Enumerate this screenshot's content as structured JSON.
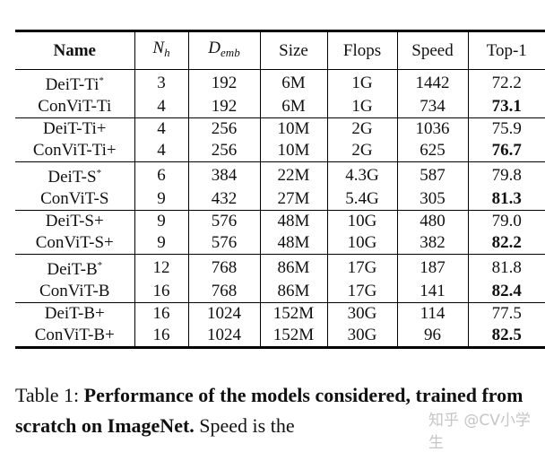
{
  "table": {
    "columns": [
      {
        "label": "Name",
        "math": false
      },
      {
        "label": "N",
        "sub": "h",
        "math": true
      },
      {
        "label": "D",
        "sub": "emb",
        "math": true
      },
      {
        "label": "Size",
        "math": false
      },
      {
        "label": "Flops",
        "math": false
      },
      {
        "label": "Speed",
        "math": false
      },
      {
        "label": "Top-1",
        "math": false
      }
    ],
    "rows": [
      {
        "name": "DeiT-Ti",
        "star": "*",
        "nh": "3",
        "demb": "192",
        "size": "6M",
        "flops": "1G",
        "speed": "1442",
        "top1": "72.2",
        "top1_bold": false
      },
      {
        "name": "ConViT-Ti",
        "star": "",
        "nh": "4",
        "demb": "192",
        "size": "6M",
        "flops": "1G",
        "speed": "734",
        "top1": "73.1",
        "top1_bold": true
      },
      {
        "name": "DeiT-Ti+",
        "star": "",
        "nh": "4",
        "demb": "256",
        "size": "10M",
        "flops": "2G",
        "speed": "1036",
        "top1": "75.9",
        "top1_bold": false
      },
      {
        "name": "ConViT-Ti+",
        "star": "",
        "nh": "4",
        "demb": "256",
        "size": "10M",
        "flops": "2G",
        "speed": "625",
        "top1": "76.7",
        "top1_bold": true
      },
      {
        "name": "DeiT-S",
        "star": "*",
        "nh": "6",
        "demb": "384",
        "size": "22M",
        "flops": "4.3G",
        "speed": "587",
        "top1": "79.8",
        "top1_bold": false
      },
      {
        "name": "ConViT-S",
        "star": "",
        "nh": "9",
        "demb": "432",
        "size": "27M",
        "flops": "5.4G",
        "speed": "305",
        "top1": "81.3",
        "top1_bold": true
      },
      {
        "name": "DeiT-S+",
        "star": "",
        "nh": "9",
        "demb": "576",
        "size": "48M",
        "flops": "10G",
        "speed": "480",
        "top1": "79.0",
        "top1_bold": false
      },
      {
        "name": "ConViT-S+",
        "star": "",
        "nh": "9",
        "demb": "576",
        "size": "48M",
        "flops": "10G",
        "speed": "382",
        "top1": "82.2",
        "top1_bold": true
      },
      {
        "name": "DeiT-B",
        "star": "*",
        "nh": "12",
        "demb": "768",
        "size": "86M",
        "flops": "17G",
        "speed": "187",
        "top1": "81.8",
        "top1_bold": false
      },
      {
        "name": "ConViT-B",
        "star": "",
        "nh": "16",
        "demb": "768",
        "size": "86M",
        "flops": "17G",
        "speed": "141",
        "top1": "82.4",
        "top1_bold": true
      },
      {
        "name": "DeiT-B+",
        "star": "",
        "nh": "16",
        "demb": "1024",
        "size": "152M",
        "flops": "30G",
        "speed": "114",
        "top1": "77.5",
        "top1_bold": false
      },
      {
        "name": "ConViT-B+",
        "star": "",
        "nh": "16",
        "demb": "1024",
        "size": "152M",
        "flops": "30G",
        "speed": "96",
        "top1": "82.5",
        "top1_bold": true
      }
    ]
  },
  "caption": {
    "prefix": "Table 1: ",
    "bold": "Performance of the models considered, trained from scratch on ImageNet.",
    "rest": " Speed is the"
  },
  "watermark": "知乎 @CV小学生"
}
